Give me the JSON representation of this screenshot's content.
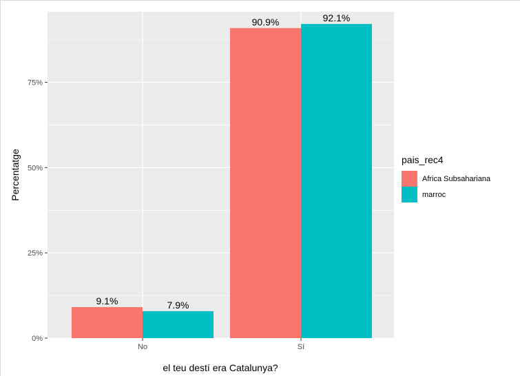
{
  "chart_data": {
    "type": "bar",
    "title": "",
    "xlabel": "el teu destí era Catalunya?",
    "ylabel": "Percentatge",
    "categories": [
      "No",
      "Sí"
    ],
    "series": [
      {
        "name": "Africa Subsahariana",
        "color": "#F8766D",
        "values": [
          9.1,
          90.9
        ],
        "labels": [
          "9.1%",
          "90.9%"
        ]
      },
      {
        "name": "marroc",
        "color": "#00BFC4",
        "values": [
          7.9,
          92.1
        ],
        "labels": [
          "7.9%",
          "92.1%"
        ]
      }
    ],
    "ylim": [
      0,
      95.7
    ],
    "yticks": [
      0,
      25,
      50,
      75
    ],
    "ytick_labels": [
      "0%",
      "25%",
      "50%",
      "75%"
    ],
    "legend": {
      "title": "pais_rec4",
      "placement": "right"
    },
    "grid": true,
    "panel_color": "#EBEBEB"
  }
}
